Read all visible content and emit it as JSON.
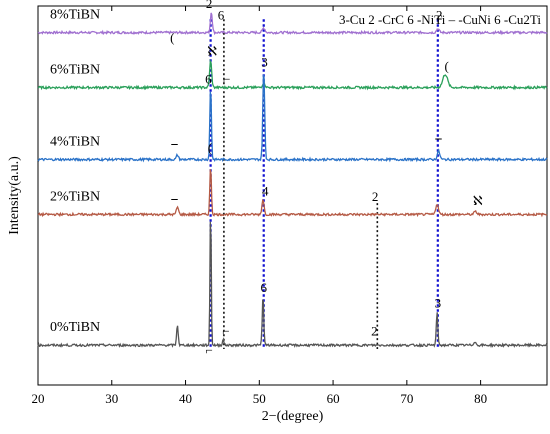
{
  "chart_data": {
    "type": "line",
    "xlabel": "2−(degree)",
    "ylabel": "Intensity(a.u.)",
    "xlim": [
      20,
      89
    ],
    "x_ticks": [
      20,
      30,
      40,
      50,
      60,
      70,
      80
    ],
    "legend_text": "3-Cu 2 -CrC 6 -NiTi – -CuNi 6 -Cu2Ti",
    "grid": false,
    "stacked_offsets": true,
    "series": [
      {
        "name": "8%TiBN",
        "color": "#a070d0",
        "baseline": 0.93,
        "peaks": [
          {
            "x": 43.5,
            "h": 0.055,
            "w": 0.18
          },
          {
            "x": 50.6,
            "h": 0.012,
            "w": 0.25
          },
          {
            "x": 74.2,
            "h": 0.01,
            "w": 0.25
          }
        ]
      },
      {
        "name": "6%TiBN",
        "color": "#2aa05a",
        "baseline": 0.785,
        "peaks": [
          {
            "x": 43.4,
            "h": 0.07,
            "w": 0.2
          },
          {
            "x": 50.6,
            "h": 0.012,
            "w": 0.25
          },
          {
            "x": 75.2,
            "h": 0.035,
            "w": 0.45
          }
        ]
      },
      {
        "name": "4%TiBN",
        "color": "#2a72c8",
        "baseline": 0.595,
        "peaks": [
          {
            "x": 38.9,
            "h": 0.012,
            "w": 0.2
          },
          {
            "x": 43.4,
            "h": 0.19,
            "w": 0.15
          },
          {
            "x": 50.6,
            "h": 0.235,
            "w": 0.18
          },
          {
            "x": 74.3,
            "h": 0.022,
            "w": 0.25
          }
        ]
      },
      {
        "name": "2%TiBN",
        "color": "#b55a45",
        "baseline": 0.45,
        "peaks": [
          {
            "x": 38.9,
            "h": 0.02,
            "w": 0.2
          },
          {
            "x": 43.4,
            "h": 0.125,
            "w": 0.15
          },
          {
            "x": 50.5,
            "h": 0.04,
            "w": 0.2
          },
          {
            "x": 74.1,
            "h": 0.028,
            "w": 0.25
          },
          {
            "x": 79.3,
            "h": 0.008,
            "w": 0.25
          }
        ]
      },
      {
        "name": "0%TiBN",
        "color": "#555555",
        "baseline": 0.105,
        "peaks": [
          {
            "x": 38.9,
            "h": 0.055,
            "w": 0.15
          },
          {
            "x": 43.4,
            "h": 0.36,
            "w": 0.12
          },
          {
            "x": 45.1,
            "h": 0.015,
            "w": 0.15
          },
          {
            "x": 50.5,
            "h": 0.13,
            "w": 0.15
          },
          {
            "x": 74.1,
            "h": 0.085,
            "w": 0.15
          },
          {
            "x": 79.2,
            "h": 0.01,
            "w": 0.2
          }
        ]
      }
    ],
    "reference_lines": [
      {
        "x": 43.4,
        "color": "#1010d0",
        "style": "dotted-blue"
      },
      {
        "x": 45.2,
        "color": "#111111",
        "style": "dotted-black"
      },
      {
        "x": 50.6,
        "color": "#1010d0",
        "style": "dotted-blue"
      },
      {
        "x": 74.2,
        "color": "#1010d0",
        "style": "dotted-blue"
      },
      {
        "x": 66.0,
        "color": "#111111",
        "style": "dotted-black",
        "partial": true
      }
    ],
    "annotations": [
      {
        "text": "2",
        "x": 43.2,
        "y": 0.995
      },
      {
        "text": "6",
        "x": 44.8,
        "y": 0.965
      },
      {
        "text": "(",
        "x": 38.2,
        "y": 0.905
      },
      {
        "text": "2",
        "x": 74.4,
        "y": 0.965
      },
      {
        "text": "ℵ",
        "x": 43.6,
        "y": 0.87
      },
      {
        "text": "⌐",
        "x": 45.6,
        "y": 0.795
      },
      {
        "text": "(",
        "x": 75.4,
        "y": 0.83
      },
      {
        "text": "3",
        "x": 50.7,
        "y": 0.84
      },
      {
        "text": "6",
        "x": 43.1,
        "y": 0.795
      },
      {
        "text": "⎯",
        "x": 38.5,
        "y": 0.625
      },
      {
        "text": "⎯",
        "x": 74.3,
        "y": 0.64
      },
      {
        "text": "(",
        "x": 43.3,
        "y": 0.615
      },
      {
        "text": "⎯",
        "x": 38.5,
        "y": 0.48
      },
      {
        "text": "4",
        "x": 50.8,
        "y": 0.5
      },
      {
        "text": "2",
        "x": 65.7,
        "y": 0.485
      },
      {
        "text": "ℵ",
        "x": 79.6,
        "y": 0.475
      },
      {
        "text": "6",
        "x": 50.6,
        "y": 0.245
      },
      {
        "text": "2",
        "x": 65.6,
        "y": 0.13
      },
      {
        "text": "3",
        "x": 74.2,
        "y": 0.205
      },
      {
        "text": "⌐",
        "x": 45.5,
        "y": 0.13
      },
      {
        "text": "⌐",
        "x": 43.2,
        "y": 0.08
      }
    ]
  }
}
